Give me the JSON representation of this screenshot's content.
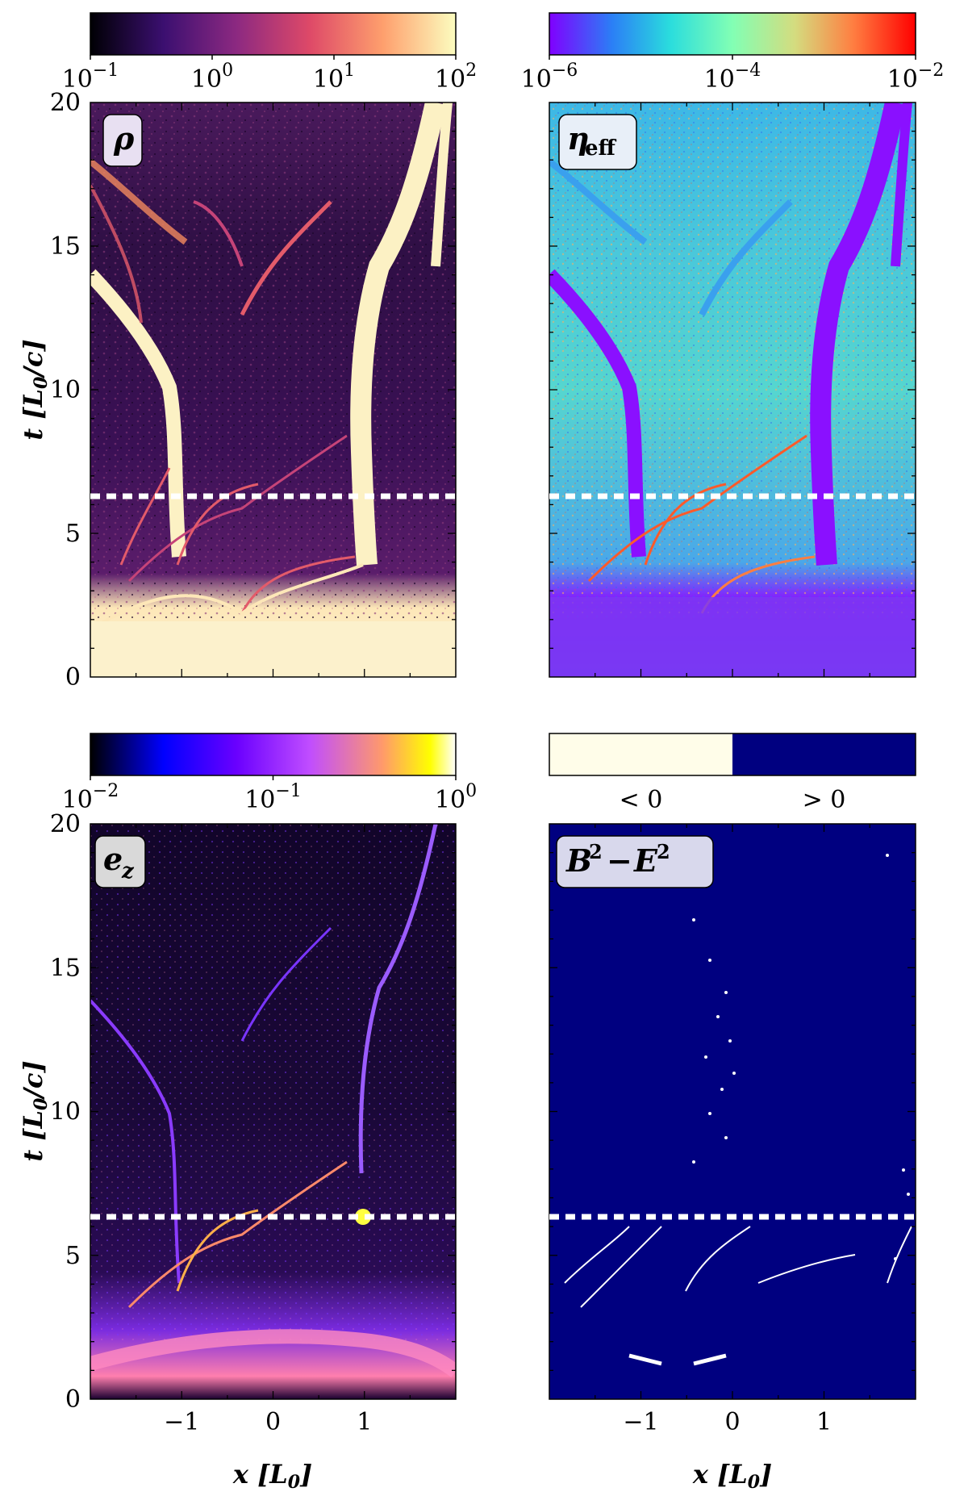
{
  "chart_data": [
    {
      "type": "heatmap",
      "panel": "top-left",
      "label_html": "ρ",
      "colormap": "magma",
      "colorbar": {
        "scale": "log",
        "ticks": [
          "10^-1",
          "10^0",
          "10^1",
          "10^2"
        ],
        "range": [
          0.1,
          100
        ]
      },
      "xlim": [
        -2,
        2
      ],
      "ylim": [
        0,
        20
      ],
      "yticks": [
        "0",
        "5",
        "10",
        "15",
        "20"
      ],
      "ylabel": "t [L0/c]",
      "dashed_line_t": 6.3
    },
    {
      "type": "heatmap",
      "panel": "top-right",
      "label_html": "η eff",
      "colormap": "rainbow",
      "colorbar": {
        "scale": "log",
        "ticks": [
          "10^-6",
          "10^-4",
          "10^-2"
        ],
        "range": [
          1e-06,
          0.01
        ]
      },
      "xlim": [
        -2,
        2
      ],
      "ylim": [
        0,
        20
      ],
      "dashed_line_t": 6.3
    },
    {
      "type": "heatmap",
      "panel": "bottom-left",
      "label_html": "e z",
      "colormap": "gnuplot2",
      "colorbar": {
        "scale": "log",
        "ticks": [
          "10^-2",
          "10^-1",
          "10^0"
        ],
        "range": [
          0.01,
          1
        ]
      },
      "xlim": [
        -2,
        2
      ],
      "ylim": [
        0,
        20
      ],
      "xticks": [
        "−1",
        "0",
        "1"
      ],
      "yticks": [
        "0",
        "5",
        "10",
        "15",
        "20"
      ],
      "xlabel": "x [L0]",
      "ylabel": "t [L0/c]",
      "dashed_line_t": 6.3
    },
    {
      "type": "heatmap",
      "panel": "bottom-right",
      "label_html": "B^2 − E^2",
      "colormap": "binary",
      "colorbar": {
        "scale": "categorical",
        "ticks": [
          "< 0",
          "> 0"
        ]
      },
      "xlim": [
        -2,
        2
      ],
      "ylim": [
        0,
        20
      ],
      "xticks": [
        "−1",
        "0",
        "1"
      ],
      "xlabel": "x [L0]",
      "dashed_line_t": 6.3
    }
  ],
  "colors": {
    "magma": [
      "#000004",
      "#3b0f70",
      "#8c2981",
      "#de4968",
      "#fe9f6d",
      "#fcfdbf"
    ],
    "rainbow": [
      "#8000ff",
      "#2b7ef6",
      "#2adddd",
      "#82ffb4",
      "#d4dc7f",
      "#ff7e41",
      "#ff0000"
    ],
    "gnuplot2": [
      "#000000",
      "#0000ff",
      "#6a00ff",
      "#c04dff",
      "#ff9a6a",
      "#ffff00",
      "#ffffff"
    ],
    "binary_neg": "#fffde9",
    "binary_pos": "#000080"
  }
}
